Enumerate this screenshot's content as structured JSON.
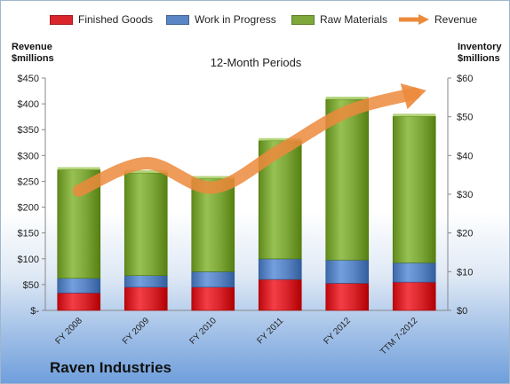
{
  "legend": {
    "finished": "Finished Goods",
    "wip": "Work in Progress",
    "raw": "Raw Materials",
    "revenue": "Revenue"
  },
  "left_axis_title": [
    "Revenue",
    "$millions"
  ],
  "right_axis_title": [
    "Inventory",
    "$millions"
  ],
  "subtitle": "12-Month Periods",
  "company": "Raven Industries",
  "colors": {
    "finished": "#d9252b",
    "wip": "#5b86c5",
    "raw": "#7ea83a",
    "revenue": "#ec8a3c"
  },
  "chart_data": {
    "type": "bar",
    "stacked": true,
    "categories": [
      "FY 2008",
      "FY 2009",
      "FY 2010",
      "FY 2011",
      "FY 2012",
      "TTM 7-2012"
    ],
    "series": [
      {
        "name": "Finished Goods",
        "axis": "right",
        "values": [
          4.5,
          6.0,
          6.0,
          8.0,
          7.0,
          7.3
        ]
      },
      {
        "name": "Work in Progress",
        "axis": "right",
        "values": [
          3.8,
          3.0,
          4.0,
          5.3,
          6.0,
          5.0
        ]
      },
      {
        "name": "Raw Materials",
        "axis": "right",
        "values": [
          28.0,
          26.5,
          24.0,
          30.5,
          41.5,
          37.8
        ]
      },
      {
        "name": "Revenue",
        "axis": "left",
        "type": "line",
        "values": [
          232,
          285,
          238,
          310,
          385,
          420
        ]
      }
    ],
    "left_axis": {
      "ylim": [
        0,
        450
      ],
      "ticks": [
        "$-",
        "$50",
        "$100",
        "$150",
        "$200",
        "$250",
        "$300",
        "$350",
        "$400",
        "$450"
      ]
    },
    "right_axis": {
      "ylim": [
        0,
        60
      ],
      "ticks": [
        "$0",
        "$10",
        "$20",
        "$30",
        "$40",
        "$50",
        "$60"
      ]
    },
    "legend_position": "top",
    "grid": false
  }
}
